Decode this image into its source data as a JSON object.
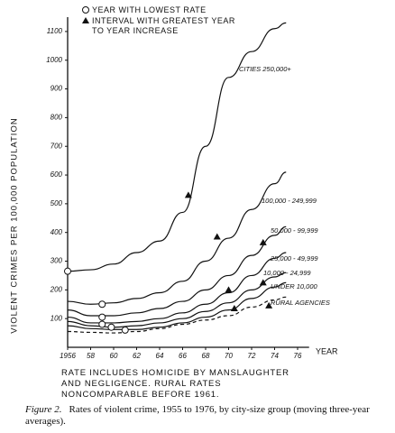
{
  "chart_data": {
    "type": "line",
    "y_label": "VIOLENT CRIMES PER 100,000 POPULATION",
    "x_label": "YEAR",
    "x": [
      1956,
      1958,
      1960,
      1962,
      1964,
      1966,
      1968,
      1970,
      1972,
      1974,
      1975
    ],
    "xlim": [
      1956,
      1977
    ],
    "xticks": [
      1956,
      {
        "value": 1958,
        "label": "58"
      },
      {
        "value": 1960,
        "label": "60"
      },
      {
        "value": 1962,
        "label": "62"
      },
      {
        "value": 1964,
        "label": "64"
      },
      {
        "value": 1966,
        "label": "66"
      },
      {
        "value": 1968,
        "label": "68"
      },
      {
        "value": 1970,
        "label": "70"
      },
      {
        "value": 1972,
        "label": "72"
      },
      {
        "value": 1974,
        "label": "74"
      },
      {
        "value": 1976,
        "label": "76"
      }
    ],
    "ylim": [
      0,
      1150
    ],
    "yticks": [
      100,
      200,
      300,
      400,
      500,
      600,
      700,
      800,
      900,
      1000,
      1100
    ],
    "series": [
      {
        "name": "CITIES 250,000+",
        "color": "#111111",
        "dashed": false,
        "values": [
          265,
          270,
          290,
          330,
          370,
          470,
          700,
          940,
          1030,
          1110,
          1130
        ]
      },
      {
        "name": "100,000 - 249,999",
        "color": "#111111",
        "dashed": false,
        "values": [
          160,
          150,
          155,
          170,
          190,
          230,
          300,
          380,
          480,
          570,
          610
        ]
      },
      {
        "name": "50,000 - 99,999",
        "color": "#111111",
        "dashed": false,
        "values": [
          130,
          110,
          110,
          120,
          135,
          160,
          200,
          250,
          320,
          390,
          420
        ]
      },
      {
        "name": "25,000 - 49,999",
        "color": "#111111",
        "dashed": false,
        "values": [
          105,
          85,
          85,
          90,
          100,
          120,
          150,
          190,
          250,
          310,
          330
        ]
      },
      {
        "name": "10,000 - 24,999",
        "color": "#111111",
        "dashed": false,
        "values": [
          90,
          75,
          70,
          75,
          85,
          100,
          125,
          155,
          200,
          245,
          260
        ]
      },
      {
        "name": "UNDER 10,000",
        "color": "#111111",
        "dashed": false,
        "values": [
          75,
          65,
          62,
          62,
          70,
          85,
          105,
          130,
          170,
          210,
          225
        ]
      },
      {
        "name": "RURAL AGENCIES",
        "color": "#111111",
        "dashed": true,
        "values": [
          55,
          52,
          50,
          55,
          65,
          80,
          95,
          110,
          140,
          165,
          175
        ]
      }
    ],
    "markers": [
      {
        "name": "YEAR WITH LOWEST RATE",
        "shape": "circle",
        "x": [
          1956,
          1959,
          1959,
          1959,
          1959.8,
          1961
        ],
        "y": [
          265,
          150,
          105,
          80,
          70,
          60
        ]
      },
      {
        "name": "INTERVAL WITH GREATEST YEAR TO YEAR INCREASE",
        "shape": "triangle",
        "x": [
          1966.5,
          1969,
          1973,
          1970,
          1973,
          1970.5,
          1973.5
        ],
        "y": [
          530,
          385,
          365,
          200,
          225,
          135,
          145
        ]
      }
    ],
    "note": "RATE INCLUDES HOMICIDE BY MANSLAUGHTER AND NEGLIGENCE. RURAL RATES NONCOMPARABLE BEFORE 1961.",
    "caption_label": "Figure 2.",
    "caption_text": "Rates of violent crime, 1955 to 1976, by city-size group (moving three-year averages)."
  }
}
